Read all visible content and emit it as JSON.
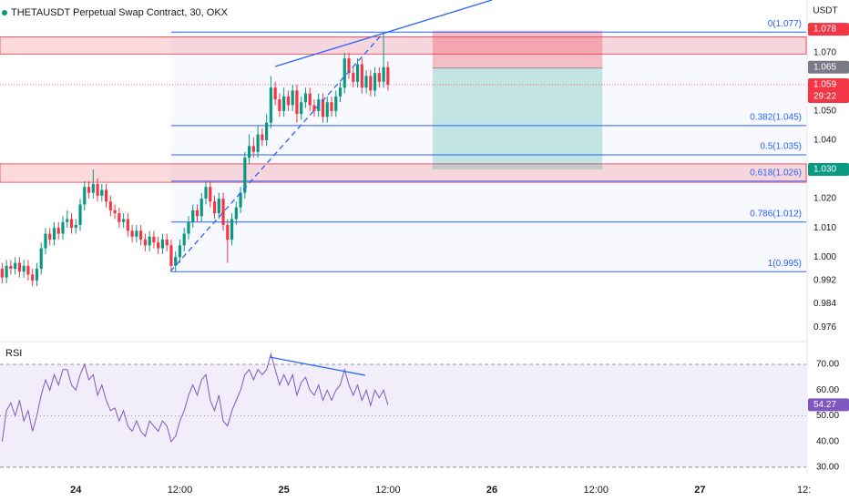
{
  "chart_data": [
    {
      "type": "candlestick",
      "title": "THETAUSDT Perpetual Swap Contract, 30, OKX",
      "currency": "USDT",
      "open": [
        0.996,
        0.993,
        0.997,
        0.996,
        0.998,
        0.995,
        0.997,
        0.994,
        0.992,
        0.996,
        1.003,
        1.008,
        1.006,
        1.01,
        1.008,
        1.012,
        1.013,
        1.01,
        1.011,
        1.018,
        1.024,
        1.022,
        1.025,
        1.021,
        1.023,
        1.019,
        1.016,
        1.015,
        1.012,
        1.013,
        1.009,
        1.007,
        1.009,
        1.006,
        1.004,
        1.007,
        1.005,
        1.003,
        1.006,
        1.004,
        0.997,
        1.0,
        1.004,
        1.008,
        1.012,
        1.016,
        1.014,
        1.02,
        1.024,
        1.019,
        1.015,
        1.02,
        1.011,
        1.006,
        1.013,
        1.017,
        1.022,
        1.034,
        1.038,
        1.036,
        1.042,
        1.04,
        1.046,
        1.058,
        1.054,
        1.05,
        1.055,
        1.052,
        1.057,
        1.049,
        1.053,
        1.056,
        1.052,
        1.05,
        1.054,
        1.048,
        1.053,
        1.05,
        1.055,
        1.058,
        1.068,
        1.063,
        1.06,
        1.066,
        1.058,
        1.062,
        1.057,
        1.063,
        1.06,
        1.065
      ],
      "high": [
        0.998,
        0.999,
        0.999,
        1.0,
        1.0,
        0.999,
        0.999,
        0.996,
        0.998,
        1.005,
        1.01,
        1.01,
        1.012,
        1.012,
        1.014,
        1.016,
        1.015,
        1.013,
        1.02,
        1.026,
        1.026,
        1.03,
        1.027,
        1.025,
        1.025,
        1.021,
        1.018,
        1.017,
        1.015,
        1.015,
        1.011,
        1.011,
        1.011,
        1.008,
        1.009,
        1.009,
        1.007,
        1.008,
        1.008,
        1.006,
        1.002,
        1.006,
        1.01,
        1.014,
        1.018,
        1.018,
        1.022,
        1.026,
        1.026,
        1.021,
        1.022,
        1.022,
        1.013,
        1.015,
        1.019,
        1.024,
        1.036,
        1.042,
        1.041,
        1.045,
        1.044,
        1.049,
        1.062,
        1.06,
        1.056,
        1.058,
        1.057,
        1.059,
        1.059,
        1.055,
        1.058,
        1.058,
        1.054,
        1.056,
        1.056,
        1.055,
        1.055,
        1.057,
        1.06,
        1.07,
        1.07,
        1.065,
        1.068,
        1.068,
        1.064,
        1.064,
        1.065,
        1.065,
        1.077,
        1.067
      ],
      "low": [
        0.991,
        0.991,
        0.994,
        0.994,
        0.993,
        0.993,
        0.992,
        0.99,
        0.99,
        0.994,
        1.001,
        1.004,
        1.004,
        1.006,
        1.006,
        1.01,
        1.008,
        1.008,
        1.009,
        1.016,
        1.02,
        1.02,
        1.019,
        1.019,
        1.017,
        1.014,
        1.013,
        1.01,
        1.01,
        1.007,
        1.005,
        1.005,
        1.004,
        1.002,
        1.002,
        1.003,
        1.001,
        1.001,
        1.002,
        0.995,
        0.995,
        0.998,
        1.002,
        1.006,
        1.01,
        1.012,
        1.012,
        1.018,
        1.017,
        1.013,
        1.013,
        1.009,
        0.998,
        1.004,
        1.011,
        1.015,
        1.02,
        1.032,
        1.034,
        1.034,
        1.038,
        1.038,
        1.044,
        1.052,
        1.048,
        1.048,
        1.05,
        1.05,
        1.046,
        1.047,
        1.051,
        1.05,
        1.048,
        1.048,
        1.046,
        1.046,
        1.048,
        1.048,
        1.053,
        1.056,
        1.061,
        1.058,
        1.058,
        1.056,
        1.056,
        1.055,
        1.055,
        1.058,
        1.058,
        1.057
      ],
      "close": [
        0.993,
        0.997,
        0.996,
        0.998,
        0.995,
        0.997,
        0.994,
        0.992,
        0.996,
        1.003,
        1.008,
        1.006,
        1.01,
        1.008,
        1.012,
        1.013,
        1.01,
        1.011,
        1.018,
        1.024,
        1.022,
        1.025,
        1.021,
        1.023,
        1.019,
        1.016,
        1.015,
        1.012,
        1.013,
        1.009,
        1.007,
        1.009,
        1.006,
        1.004,
        1.007,
        1.005,
        1.003,
        1.006,
        1.004,
        0.997,
        1.0,
        1.004,
        1.008,
        1.012,
        1.016,
        1.014,
        1.02,
        1.024,
        1.019,
        1.015,
        1.02,
        1.011,
        1.006,
        1.013,
        1.017,
        1.022,
        1.034,
        1.038,
        1.036,
        1.042,
        1.04,
        1.046,
        1.058,
        1.054,
        1.05,
        1.055,
        1.052,
        1.057,
        1.049,
        1.053,
        1.056,
        1.052,
        1.05,
        1.054,
        1.048,
        1.053,
        1.05,
        1.055,
        1.058,
        1.068,
        1.063,
        1.06,
        1.066,
        1.058,
        1.062,
        1.057,
        1.063,
        1.06,
        1.065,
        1.059
      ],
      "up_color": "#089981",
      "down_color": "#f23645",
      "xlim": [
        -0.5,
        185.5
      ],
      "xticks": [
        {
          "value": 17,
          "label": "24"
        },
        {
          "value": 41,
          "label": "12:00"
        },
        {
          "value": 65,
          "label": "25"
        },
        {
          "value": 89,
          "label": "12:00"
        },
        {
          "value": 113,
          "label": "26"
        },
        {
          "value": 137,
          "label": "12:00"
        },
        {
          "value": 161,
          "label": "27"
        },
        {
          "value": 185,
          "label": "12:"
        }
      ],
      "ylim": [
        0.972,
        1.088
      ],
      "yticks": [
        0.976,
        0.984,
        0.992,
        {
          "value": 1.0,
          "label": "1.000"
        },
        {
          "value": 1.01,
          "label": "1.010"
        },
        {
          "value": 1.02,
          "label": "1.020"
        },
        {
          "value": 1.04,
          "label": "1.040"
        },
        {
          "value": 1.05,
          "label": "1.050"
        },
        {
          "value": 1.07,
          "label": "1.070"
        }
      ],
      "price_labels": [
        {
          "value": 1.078,
          "label": "1.078",
          "color": "#f23645"
        },
        {
          "value": 1.065,
          "label": "1.065",
          "color": "#787b86"
        },
        {
          "value": 1.059,
          "label": "1.059",
          "color": "#f23645"
        },
        {
          "value": 1.03,
          "label": "1.030",
          "color": "#089981"
        }
      ],
      "countdown": "29:22",
      "fib_start": 39,
      "fib_levels": [
        {
          "value": 1.077,
          "label": "0(1.077)"
        },
        {
          "value": 1.045,
          "label": "0.382(1.045)"
        },
        {
          "value": 1.035,
          "label": "0.5(1.035)"
        },
        {
          "value": 1.026,
          "label": "0.618(1.026)"
        },
        {
          "value": 1.012,
          "label": "0.786(1.012)"
        },
        {
          "value": 0.995,
          "label": "1(0.995)"
        }
      ],
      "zones": [
        {
          "top": 1.0754,
          "bottom": 1.0695
        },
        {
          "top": 1.0319,
          "bottom": 1.0256
        }
      ],
      "position": {
        "start": 99.3,
        "end": 138.5,
        "stop": 1.0775,
        "entry": 1.0647,
        "target": 1.03
      }
    },
    {
      "type": "line",
      "title": "RSI",
      "color": "#7e57c2",
      "values": [
        40,
        52,
        55,
        50,
        56,
        48,
        52,
        44,
        50,
        58,
        64,
        60,
        66,
        62,
        68,
        68,
        62,
        60,
        66,
        70,
        64,
        66,
        58,
        62,
        56,
        52,
        53,
        48,
        52,
        46,
        44,
        48,
        44,
        42,
        48,
        46,
        44,
        48,
        46,
        40,
        42,
        48,
        52,
        58,
        62,
        58,
        64,
        66,
        56,
        52,
        58,
        48,
        46,
        52,
        56,
        60,
        66,
        68,
        64,
        68,
        66,
        68,
        74,
        68,
        62,
        66,
        62,
        66,
        58,
        63,
        65,
        60,
        58,
        62,
        56,
        60,
        56,
        60,
        62,
        68,
        62,
        58,
        62,
        56,
        60,
        54,
        60,
        57,
        60,
        54.27
      ],
      "ylim": [
        27.5,
        77.8
      ],
      "yticks": [
        {
          "value": 30,
          "label": "30.00"
        },
        {
          "value": 40,
          "label": "40.00"
        },
        {
          "value": 50,
          "label": "50.00"
        },
        {
          "value": 60,
          "label": "60.00"
        },
        {
          "value": 70,
          "label": "70.00"
        }
      ]
    }
  ]
}
